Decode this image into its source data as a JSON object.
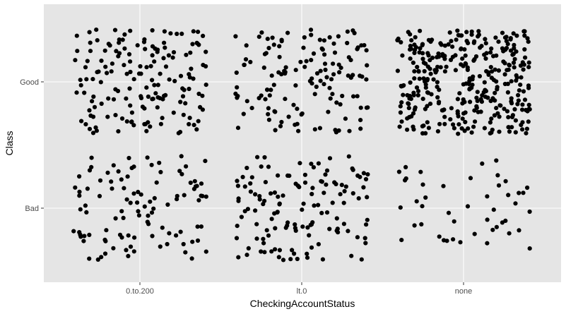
{
  "chart_data": {
    "type": "scatter",
    "jitter": true,
    "xlabel": "CheckingAccountStatus",
    "ylabel": "Class",
    "x_categories": [
      "0.to.200",
      "lt.0",
      "none"
    ],
    "y_categories": [
      "Bad",
      "Good"
    ],
    "grid": true,
    "legend": "none",
    "colors": {
      "panel": "#e5e5e5",
      "grid": "#ffffff",
      "point": "#000000",
      "tick_text": "#4d4d4d",
      "title_text": "#000000"
    },
    "counts": [
      {
        "x": "0.to.200",
        "y": "Good",
        "n": 164
      },
      {
        "x": "0.to.200",
        "y": "Bad",
        "n": 105
      },
      {
        "x": "lt.0",
        "y": "Good",
        "n": 139
      },
      {
        "x": "lt.0",
        "y": "Bad",
        "n": 135
      },
      {
        "x": "none",
        "y": "Good",
        "n": 348
      },
      {
        "x": "none",
        "y": "Bad",
        "n": 46
      }
    ]
  }
}
